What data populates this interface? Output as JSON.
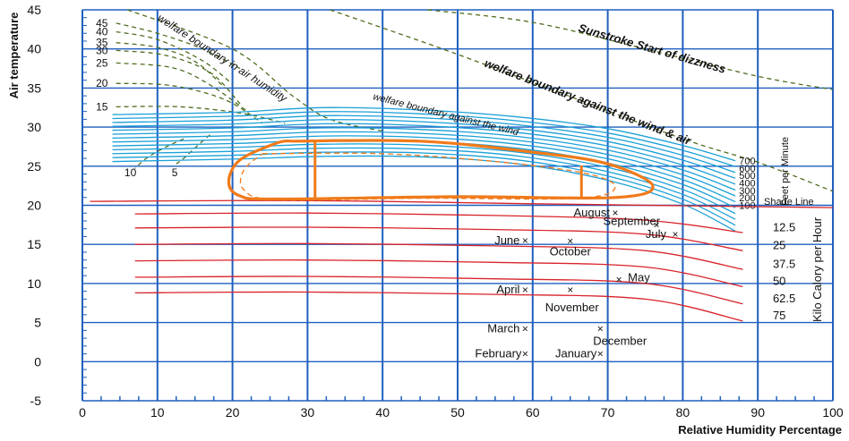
{
  "chart_data": {
    "type": "line",
    "title": "",
    "xlabel": "Relative Humidity Percentage",
    "ylabel": "Air temperature",
    "xlim": [
      0,
      100
    ],
    "ylim": [
      -5,
      45
    ],
    "x_ticks": [
      0,
      10,
      20,
      30,
      40,
      50,
      60,
      70,
      80,
      90,
      100
    ],
    "y_ticks": [
      -5,
      0,
      5,
      10,
      15,
      20,
      25,
      30,
      35,
      40,
      45
    ],
    "grid": true,
    "annotations": {
      "sunstroke": "Sunstroke Start of dizzness",
      "welfare_wind_air": "welfare boundary against the wind & air",
      "welfare_humidity": "welfare boundary in air humidity",
      "welfare_wind": "welfare boundary against the wind",
      "shade_line": "Shade Line",
      "wind_unit": "Feet per Minute",
      "solar_unit": "Kilo Calory per Hour"
    },
    "humidity_boundary_labels": [
      "45",
      "40",
      "35",
      "30",
      "25",
      "20",
      "15"
    ],
    "low_humidity_labels": [
      "10",
      "5"
    ],
    "wind_speed_labels": [
      "700",
      "600",
      "500",
      "400",
      "300",
      "200",
      "100"
    ],
    "solar_radiation_labels": [
      "12.5",
      "25",
      "37.5",
      "50",
      "62.5",
      "75"
    ],
    "months": [
      {
        "name": "January",
        "x": 69,
        "y": 1
      },
      {
        "name": "February",
        "x": 59,
        "y": 1
      },
      {
        "name": "March",
        "x": 59,
        "y": 4.2
      },
      {
        "name": "April",
        "x": 59,
        "y": 9.2
      },
      {
        "name": "May",
        "x": 71.5,
        "y": 10.5
      },
      {
        "name": "June",
        "x": 59,
        "y": 15.5
      },
      {
        "name": "July",
        "x": 79,
        "y": 16.3
      },
      {
        "name": "August",
        "x": 71,
        "y": 19
      },
      {
        "name": "September",
        "x": 76.5,
        "y": 17.5
      },
      {
        "name": "October",
        "x": 65,
        "y": 15.4
      },
      {
        "name": "November",
        "x": 65,
        "y": 9.2
      },
      {
        "name": "December",
        "x": 69,
        "y": 4.2
      }
    ],
    "colors": {
      "grid": "#1f5fbf",
      "comfort_zone": "#f07a1a",
      "wind_lines": "#1aa0d8",
      "radiation_lines": "#d8232a",
      "boundary_dashes": "#4f6e1f",
      "text": "#111111"
    }
  }
}
